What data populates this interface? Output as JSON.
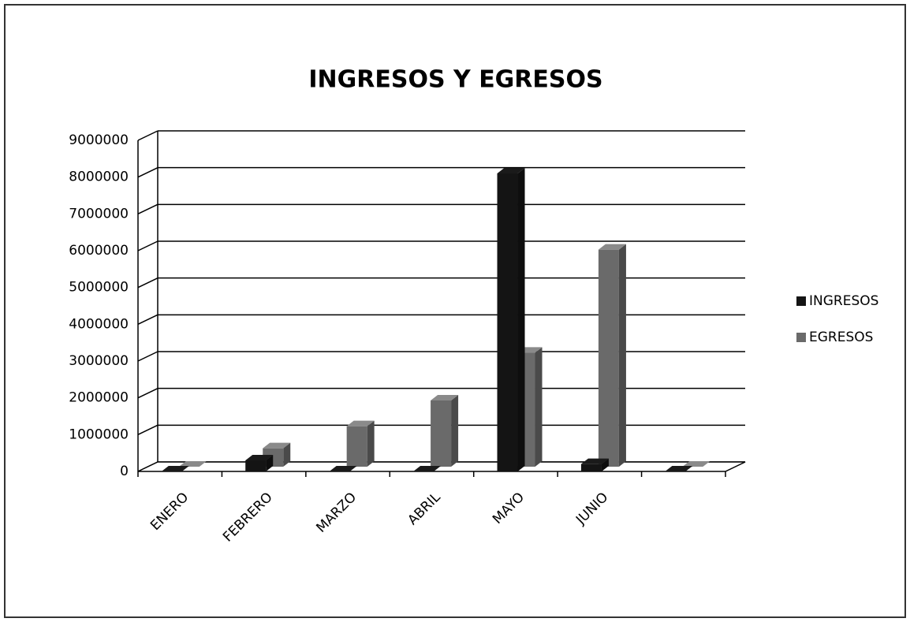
{
  "chart_data": {
    "type": "bar3d",
    "title": "INGRESOS Y EGRESOS",
    "categories": [
      "ENERO",
      "FEBRERO",
      "MARZO",
      "ABRIL",
      "MAYO",
      "JUNIO",
      null
    ],
    "series": [
      {
        "name": "INGRESOS",
        "color": "#141414",
        "values": [
          0,
          300000,
          0,
          0,
          8100000,
          200000,
          0
        ]
      },
      {
        "name": "EGRESOS",
        "color": "#6a6a6a",
        "values": [
          0,
          500000,
          1100000,
          1800000,
          3100000,
          5900000,
          0
        ]
      }
    ],
    "ylim": [
      0,
      9000000
    ],
    "yticks": [
      0,
      1000000,
      2000000,
      3000000,
      4000000,
      5000000,
      6000000,
      7000000,
      8000000,
      9000000
    ],
    "grid": true,
    "legend": "right"
  }
}
